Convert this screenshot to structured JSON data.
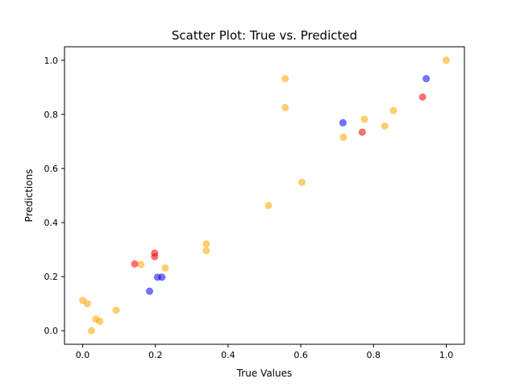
{
  "chart_data": {
    "type": "scatter",
    "title": "Scatter Plot: True vs. Predicted",
    "xlabel": "True Values",
    "ylabel": "Predictions",
    "xlim": [
      -0.05,
      1.05
    ],
    "ylim": [
      -0.05,
      1.05
    ],
    "xticks": [
      "0.0",
      "0.2",
      "0.4",
      "0.6",
      "0.8",
      "1.0"
    ],
    "yticks": [
      "0.0",
      "0.2",
      "0.4",
      "0.6",
      "0.8",
      "1.0"
    ],
    "grid": false,
    "series": [
      {
        "color": "#ffa500",
        "points": [
          {
            "x": 1.0,
            "y": 1.0
          },
          {
            "x": 0.557,
            "y": 0.932
          },
          {
            "x": 0.557,
            "y": 0.825
          },
          {
            "x": 0.775,
            "y": 0.782
          },
          {
            "x": 0.855,
            "y": 0.814
          },
          {
            "x": 0.831,
            "y": 0.757
          },
          {
            "x": 0.717,
            "y": 0.715
          },
          {
            "x": 0.603,
            "y": 0.549
          },
          {
            "x": 0.511,
            "y": 0.463
          },
          {
            "x": 0.34,
            "y": 0.321
          },
          {
            "x": 0.34,
            "y": 0.296
          },
          {
            "x": 0.227,
            "y": 0.232
          },
          {
            "x": 0.16,
            "y": 0.245
          },
          {
            "x": 0.0,
            "y": 0.112
          },
          {
            "x": 0.013,
            "y": 0.1
          },
          {
            "x": 0.092,
            "y": 0.076
          },
          {
            "x": 0.036,
            "y": 0.043
          },
          {
            "x": 0.047,
            "y": 0.035
          },
          {
            "x": 0.024,
            "y": 0.0
          }
        ]
      },
      {
        "color": "#ff0000",
        "points": [
          {
            "x": 0.935,
            "y": 0.864
          },
          {
            "x": 0.769,
            "y": 0.734
          },
          {
            "x": 0.143,
            "y": 0.247
          },
          {
            "x": 0.198,
            "y": 0.287
          },
          {
            "x": 0.198,
            "y": 0.274
          }
        ]
      },
      {
        "color": "#0000ff",
        "points": [
          {
            "x": 0.945,
            "y": 0.932
          },
          {
            "x": 0.716,
            "y": 0.769
          },
          {
            "x": 0.206,
            "y": 0.198
          },
          {
            "x": 0.218,
            "y": 0.198
          },
          {
            "x": 0.184,
            "y": 0.146
          }
        ]
      }
    ]
  }
}
